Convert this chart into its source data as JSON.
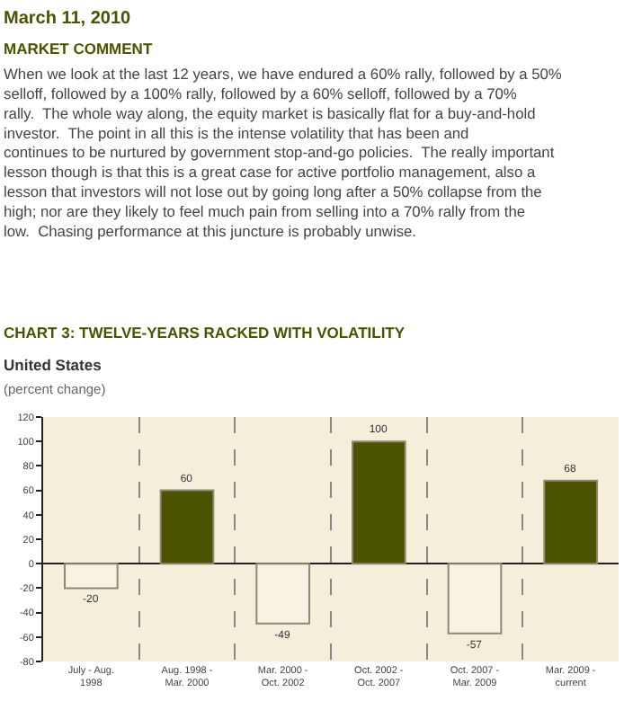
{
  "chart_data": {
    "type": "bar",
    "title": "CHART 3: TWELVE-YEARS RACKED WITH VOLATILITY",
    "subtitle": "United States",
    "ylabel": "(percent change)",
    "annotations": [
      "March 11, 2010",
      "MARKET COMMENT",
      "When we look at the last 12 years, we have endured a 60% rally, followed by a 50% selloff, followed by a 100% rally, followed by a 60% selloff, followed by a 70% rally.  The whole way along, the equity market is basically flat for a buy-and-hold investor.  The point in all this is the intense volatility that has been and continues to be nurtured by government stop-and-go policies.  The really important lesson though is that this is a great case for active portfolio management, also a lesson that investors will not lose out by going long after a 50% collapse from the high; nor are they likely to feel much pain from selling into a 70% rally from the low.  Chasing performance at this juncture is probably unwise."
    ],
    "categories": [
      "July - Aug. 1998",
      "Aug. 1998 - Mar. 2000",
      "Mar. 2000 - Oct. 2002",
      "Oct. 2002 - Oct. 2007",
      "Oct. 2007 - Mar. 2009",
      "Mar. 2009 - current"
    ],
    "values": [
      -20,
      60,
      -49,
      100,
      -57,
      68
    ],
    "colors": [
      "#f7f2e4",
      "#4b5300",
      "#f7f2e4",
      "#4b5300",
      "#f7f2e4",
      "#4b5300"
    ],
    "ylim": [
      -80,
      120
    ],
    "yticks": [
      -80,
      -60,
      -40,
      -20,
      0,
      20,
      40,
      60,
      80,
      100,
      120
    ],
    "data_labels": true,
    "grid": "x",
    "legend": false
  }
}
